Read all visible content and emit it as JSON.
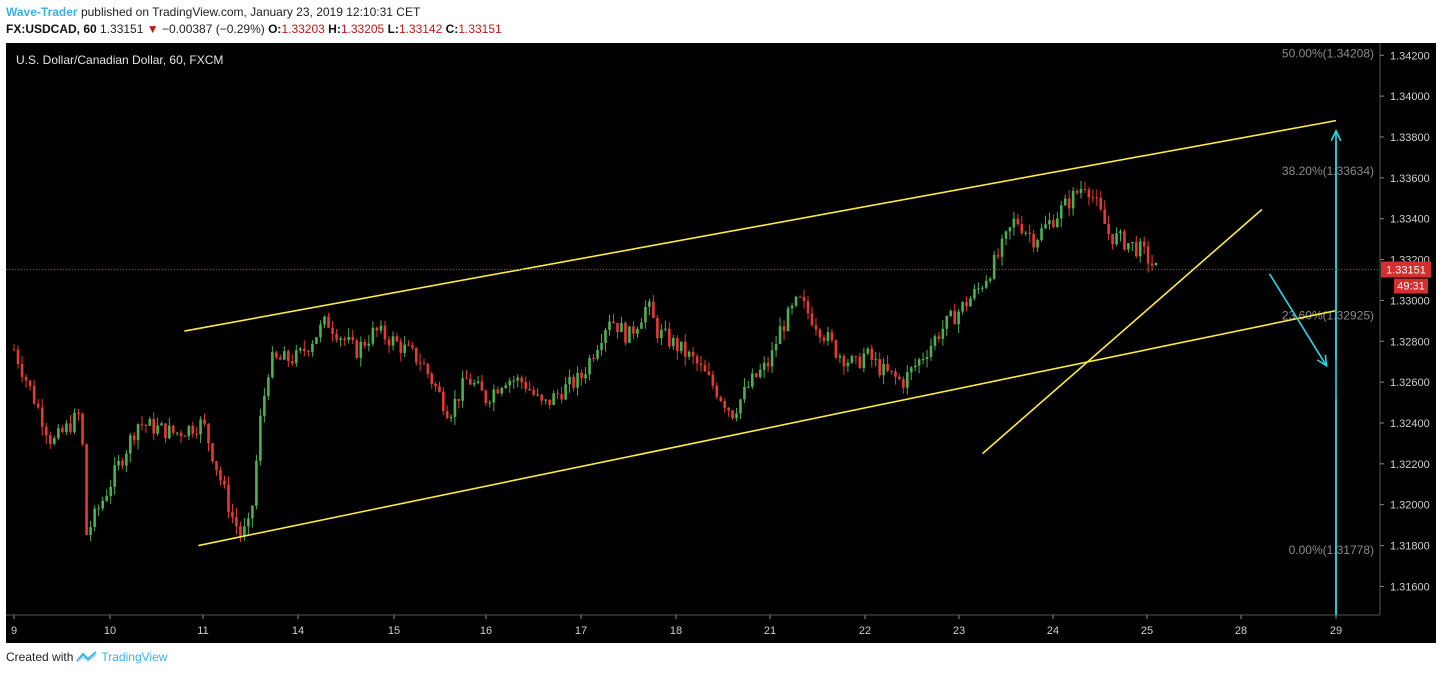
{
  "header": {
    "author": "Wave-Trader",
    "published_text": "published on TradingView.com, January 23, 2019 12:10:31 CET",
    "symbol": "FX:USDCAD, 60",
    "last": "1.33151",
    "change": "−0.00387 (−0.29%)",
    "o_label": "O:",
    "o_value": "1.33203",
    "h_label": "H:",
    "h_value": "1.33205",
    "l_label": "L:",
    "l_value": "1.33142",
    "c_label": "C:",
    "c_value": "1.33151"
  },
  "footer": {
    "created_with": "Created with",
    "brand": "TradingView"
  },
  "chart_data": {
    "type": "candlestick",
    "title": "U.S. Dollar/Canadian Dollar, 60, FXCM",
    "ylim": [
      1.3146,
      1.3426
    ],
    "y_ticks": [
      "1.34200",
      "1.34000",
      "1.33800",
      "1.33600",
      "1.33400",
      "1.33200",
      "1.33000",
      "1.32800",
      "1.32600",
      "1.32400",
      "1.32200",
      "1.32000",
      "1.31800",
      "1.31600"
    ],
    "x_ticks": [
      "9",
      "10",
      "11",
      "14",
      "15",
      "16",
      "17",
      "18",
      "21",
      "22",
      "23",
      "24",
      "25",
      "28",
      "29"
    ],
    "last_price_label": "1.33151",
    "last_price": 1.33151,
    "countdown_label": "49:31",
    "fib_levels": [
      {
        "label": "50.00%(1.34208)",
        "value": 1.34208
      },
      {
        "label": "38.20%(1.33634)",
        "value": 1.33634
      },
      {
        "label": "23.60%(1.32925)",
        "value": 1.32925
      },
      {
        "label": "0.00%(1.31778)",
        "value": 1.31778
      }
    ],
    "path_points": [
      [
        9.0,
        1.3276
      ],
      [
        9.4,
        1.323
      ],
      [
        9.7,
        1.3245
      ],
      [
        9.75,
        1.3185
      ],
      [
        10.0,
        1.321
      ],
      [
        10.3,
        1.324
      ],
      [
        10.7,
        1.3235
      ],
      [
        11.0,
        1.324
      ],
      [
        11.3,
        1.3195
      ],
      [
        11.4,
        1.3185
      ],
      [
        11.5,
        1.319
      ],
      [
        11.6,
        1.324
      ],
      [
        11.7,
        1.327
      ],
      [
        12.0,
        1.3272
      ],
      [
        12.3,
        1.329
      ],
      [
        12.6,
        1.3275
      ],
      [
        12.8,
        1.3285
      ],
      [
        13.0,
        1.328
      ],
      [
        13.3,
        1.327
      ],
      [
        13.6,
        1.3245
      ],
      [
        13.8,
        1.3262
      ],
      [
        14.0,
        1.3252
      ],
      [
        14.2,
        1.3262
      ],
      [
        14.4,
        1.326
      ],
      [
        14.6,
        1.3248
      ],
      [
        14.8,
        1.3256
      ],
      [
        15.0,
        1.3262
      ],
      [
        15.3,
        1.3292
      ],
      [
        15.5,
        1.3282
      ],
      [
        15.7,
        1.3298
      ],
      [
        15.8,
        1.3285
      ],
      [
        16.0,
        1.3278
      ],
      [
        16.2,
        1.327
      ],
      [
        16.4,
        1.3258
      ],
      [
        16.6,
        1.3245
      ],
      [
        16.8,
        1.326
      ],
      [
        17.0,
        1.327
      ],
      [
        17.1,
        1.3285
      ],
      [
        17.3,
        1.33
      ],
      [
        17.5,
        1.3288
      ],
      [
        17.7,
        1.3275
      ],
      [
        17.9,
        1.3268
      ],
      [
        18.0,
        1.3274
      ],
      [
        18.2,
        1.3265
      ],
      [
        18.4,
        1.326
      ],
      [
        18.6,
        1.3272
      ],
      [
        18.8,
        1.3285
      ],
      [
        19.0,
        1.3295
      ],
      [
        19.2,
        1.3305
      ],
      [
        19.4,
        1.332
      ],
      [
        19.6,
        1.334
      ],
      [
        19.8,
        1.333
      ],
      [
        20.0,
        1.334
      ],
      [
        20.2,
        1.335
      ],
      [
        20.35,
        1.3358
      ],
      [
        20.45,
        1.3348
      ],
      [
        20.6,
        1.3332
      ],
      [
        20.8,
        1.3328
      ],
      [
        20.95,
        1.3324
      ],
      [
        21.05,
        1.3318
      ],
      [
        21.1,
        1.3315
      ]
    ],
    "channel_lines": [
      {
        "from": [
          10.8,
          1.3285
        ],
        "to": [
          26.32,
          1.3388
        ],
        "color": "#ffeb3b"
      },
      {
        "from": [
          10.95,
          1.318
        ],
        "to": [
          26.95,
          1.3295
        ],
        "color": "#ffeb3b"
      },
      {
        "from": [
          19.25,
          1.3225
        ],
        "to": [
          22.22,
          1.33445
        ],
        "color": "#ffeb3b"
      }
    ],
    "projection_arrows": [
      {
        "from": [
          22.3,
          1.3313
        ],
        "to": [
          22.9,
          1.3268
        ],
        "color": "#26d7e8",
        "head": true
      },
      {
        "from": [
          23.15,
          1.3271
        ],
        "to": [
          24.5,
          1.3383
        ],
        "color": "#26d7e8",
        "head": true
      },
      {
        "from": [
          24.65,
          1.3378
        ],
        "to": [
          26.85,
          1.3146
        ],
        "color": "#26d7e8",
        "head": false
      },
      {
        "from": [
          23.0,
          1.3252
        ],
        "to": [
          23.95,
          1.3146
        ],
        "color": "#26d7e8",
        "head": false
      }
    ]
  }
}
